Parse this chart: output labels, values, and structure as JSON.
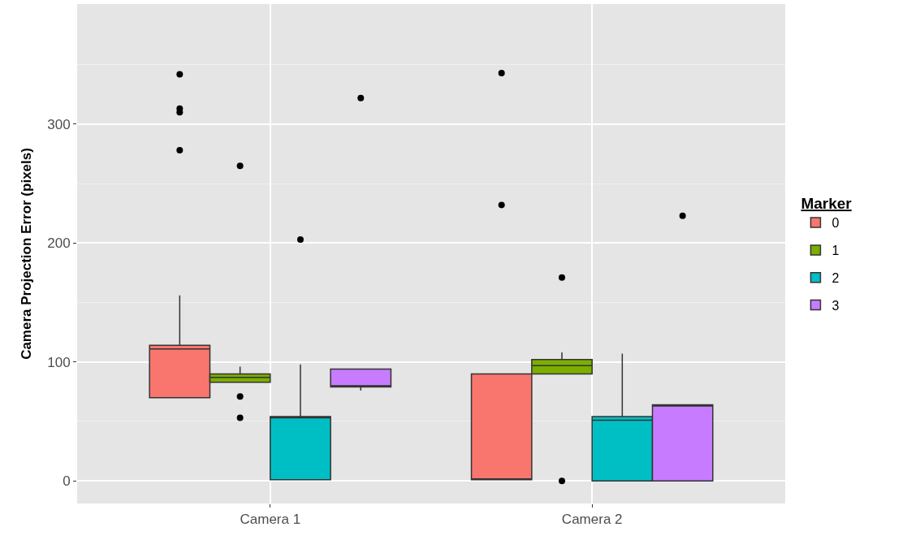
{
  "chart_data": {
    "type": "box",
    "ylabel": "Camera Projection Error (pixels)",
    "legend_title": "Marker",
    "legend": "right",
    "categories": [
      "Camera 1",
      "Camera 2"
    ],
    "ylim": [
      -19,
      401
    ],
    "yticks": [
      0,
      {
        "value": 50,
        "label": null
      },
      100,
      {
        "value": 150,
        "label": null
      },
      200,
      {
        "value": 250,
        "label": null
      },
      300,
      {
        "value": 350,
        "label": null
      }
    ],
    "grid": true,
    "series": [
      {
        "name": "0",
        "color": "#f8766d",
        "boxes": [
          {
            "low": 70,
            "q1": 70,
            "median": 111,
            "q3": 114,
            "high": 156,
            "outliers": [
              342,
              313,
              310,
              278
            ]
          },
          {
            "low": 1,
            "q1": 1,
            "median": 1,
            "q3": 90,
            "high": 90,
            "outliers": [
              343,
              232
            ]
          }
        ]
      },
      {
        "name": "1",
        "color": "#7cae00",
        "boxes": [
          {
            "low": 83,
            "q1": 83,
            "median": 87,
            "q3": 90,
            "high": 96,
            "outliers": [
              265,
              71,
              53
            ]
          },
          {
            "low": 90,
            "q1": 90,
            "median": 97,
            "q3": 102,
            "high": 108,
            "outliers": [
              171,
              0
            ]
          }
        ]
      },
      {
        "name": "2",
        "color": "#00bfc4",
        "boxes": [
          {
            "low": 1,
            "q1": 1,
            "median": 53,
            "q3": 54,
            "high": 98,
            "outliers": [
              203
            ]
          },
          {
            "low": 0,
            "q1": 0,
            "median": 51,
            "q3": 54,
            "high": 107
          }
        ]
      },
      {
        "name": "3",
        "color": "#c77cff",
        "boxes": [
          {
            "low": 76,
            "q1": 79,
            "median": 80,
            "q3": 94,
            "high": 94,
            "outliers": [
              322
            ]
          },
          {
            "low": 0,
            "q1": 0,
            "median": 63,
            "q3": 64,
            "high": 64,
            "outliers": [
              223
            ]
          }
        ]
      }
    ]
  }
}
